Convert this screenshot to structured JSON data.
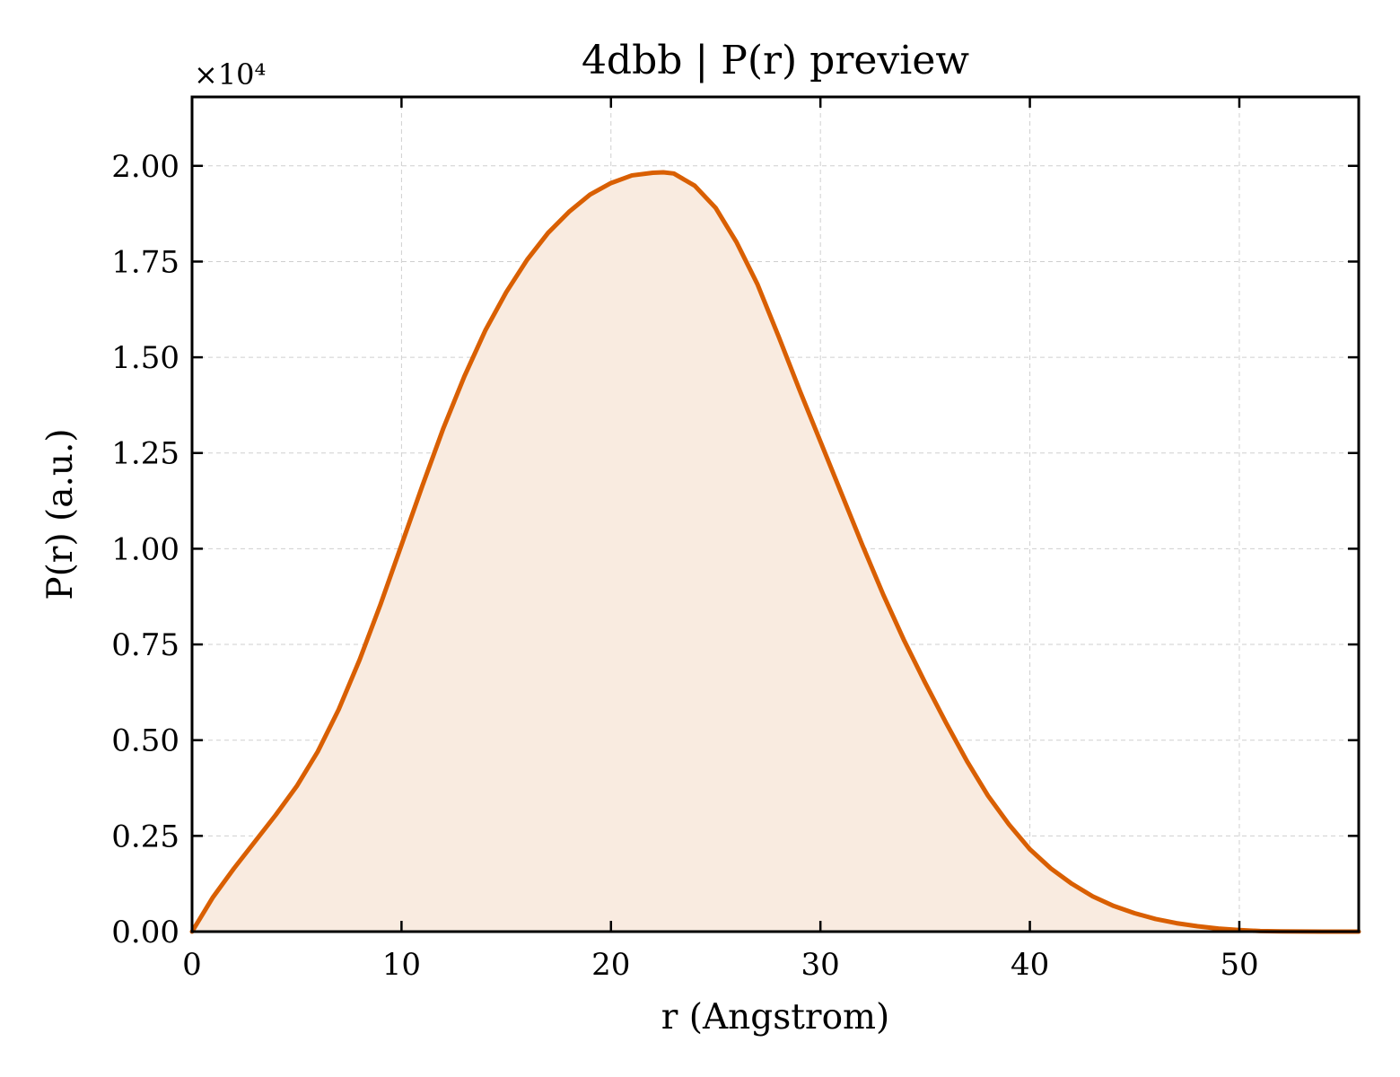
{
  "chart_data": {
    "type": "area",
    "title": "4dbb | P(r) preview",
    "xlabel": "r (Angstrom)",
    "ylabel": "P(r) (a.u.)",
    "y_offset_label": "×10⁴",
    "xlim": [
      0,
      55.7
    ],
    "ylim": [
      0,
      21800
    ],
    "x_ticks": [
      0,
      10,
      20,
      30,
      40,
      50
    ],
    "x_tick_labels": [
      "0",
      "10",
      "20",
      "30",
      "40",
      "50"
    ],
    "y_ticks": [
      0,
      2500,
      5000,
      7500,
      10000,
      12500,
      15000,
      17500,
      20000
    ],
    "y_tick_labels": [
      "0.00",
      "0.25",
      "0.50",
      "0.75",
      "1.00",
      "1.25",
      "1.50",
      "1.75",
      "2.00"
    ],
    "grid": true,
    "colors": {
      "line": "#d95f02",
      "fill": "#f9ebe0"
    },
    "series": [
      {
        "x": [
          0,
          1,
          2,
          3,
          4,
          5,
          6,
          7,
          8,
          9,
          10,
          11,
          12,
          13,
          14,
          15,
          16,
          17,
          18,
          19,
          20,
          21,
          22,
          22.5,
          23,
          24,
          25,
          26,
          27,
          28,
          29,
          30,
          31,
          32,
          33,
          34,
          35,
          36,
          37,
          38,
          39,
          40,
          41,
          42,
          43,
          44,
          45,
          46,
          47,
          48,
          49,
          50,
          51,
          52,
          53,
          54,
          55,
          55.7
        ],
        "y": [
          0,
          900,
          1650,
          2350,
          3050,
          3800,
          4700,
          5800,
          7100,
          8550,
          10100,
          11650,
          13150,
          14500,
          15700,
          16700,
          17550,
          18250,
          18800,
          19250,
          19550,
          19750,
          19820,
          19830,
          19800,
          19480,
          18900,
          18000,
          16900,
          15550,
          14150,
          12800,
          11450,
          10100,
          8800,
          7600,
          6500,
          5450,
          4450,
          3550,
          2800,
          2150,
          1650,
          1250,
          920,
          670,
          480,
          330,
          220,
          140,
          80,
          40,
          15,
          5,
          2,
          1,
          0,
          0
        ]
      }
    ]
  }
}
